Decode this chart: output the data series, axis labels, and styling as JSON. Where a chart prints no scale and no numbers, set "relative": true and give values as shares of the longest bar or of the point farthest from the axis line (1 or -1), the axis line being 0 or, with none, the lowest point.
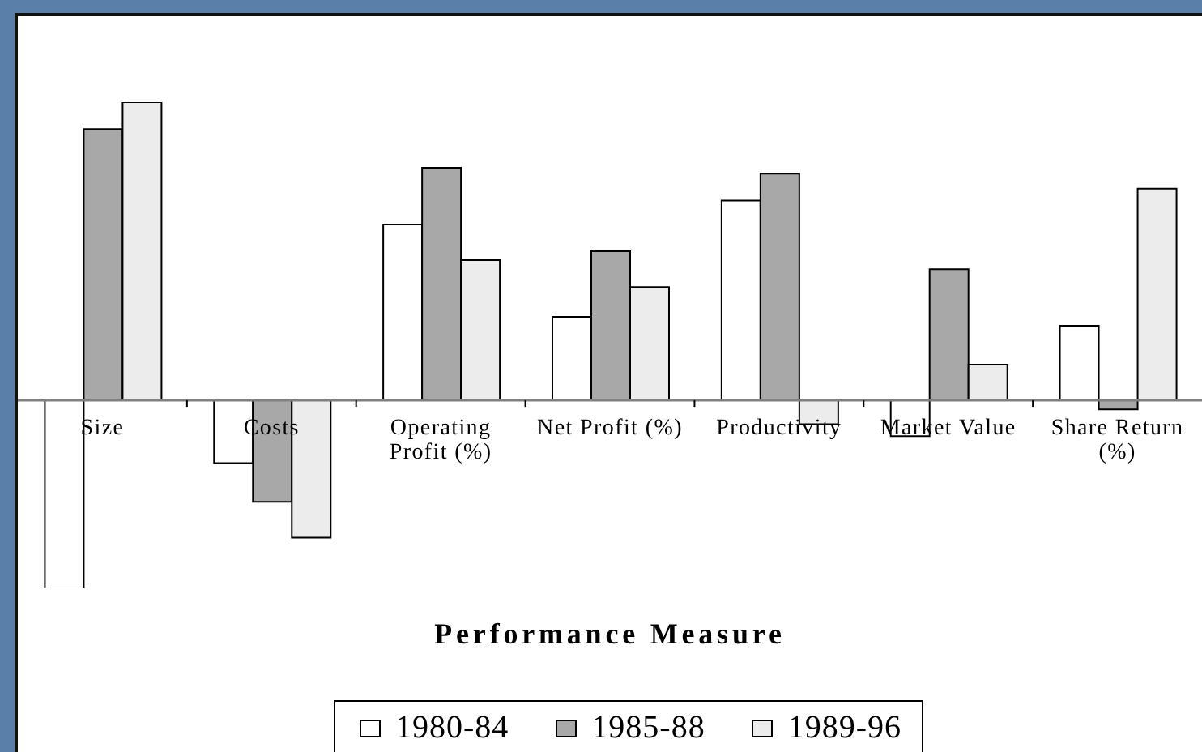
{
  "chart_data": {
    "type": "bar",
    "xlabel": "Performance Measure",
    "categories": [
      "Size",
      "Costs",
      "Operating Profit (%)",
      "Net Profit (%)",
      "Productivity",
      "Market Value",
      "Share Return (%)"
    ],
    "relative": true,
    "series": [
      {
        "name": "1980-84",
        "color": "#ffffff",
        "values": [
          -0.63,
          -0.21,
          0.59,
          0.28,
          0.67,
          -0.12,
          0.25
        ]
      },
      {
        "name": "1985-88",
        "color": "#a8a8a8",
        "values": [
          0.91,
          -0.34,
          0.78,
          0.5,
          0.76,
          0.44,
          -0.03
        ]
      },
      {
        "name": "1989-96",
        "color": "#ececec",
        "values": [
          1,
          -0.46,
          0.47,
          0.38,
          -0.08,
          0.12,
          0.71
        ]
      }
    ],
    "legend": "bottom"
  }
}
